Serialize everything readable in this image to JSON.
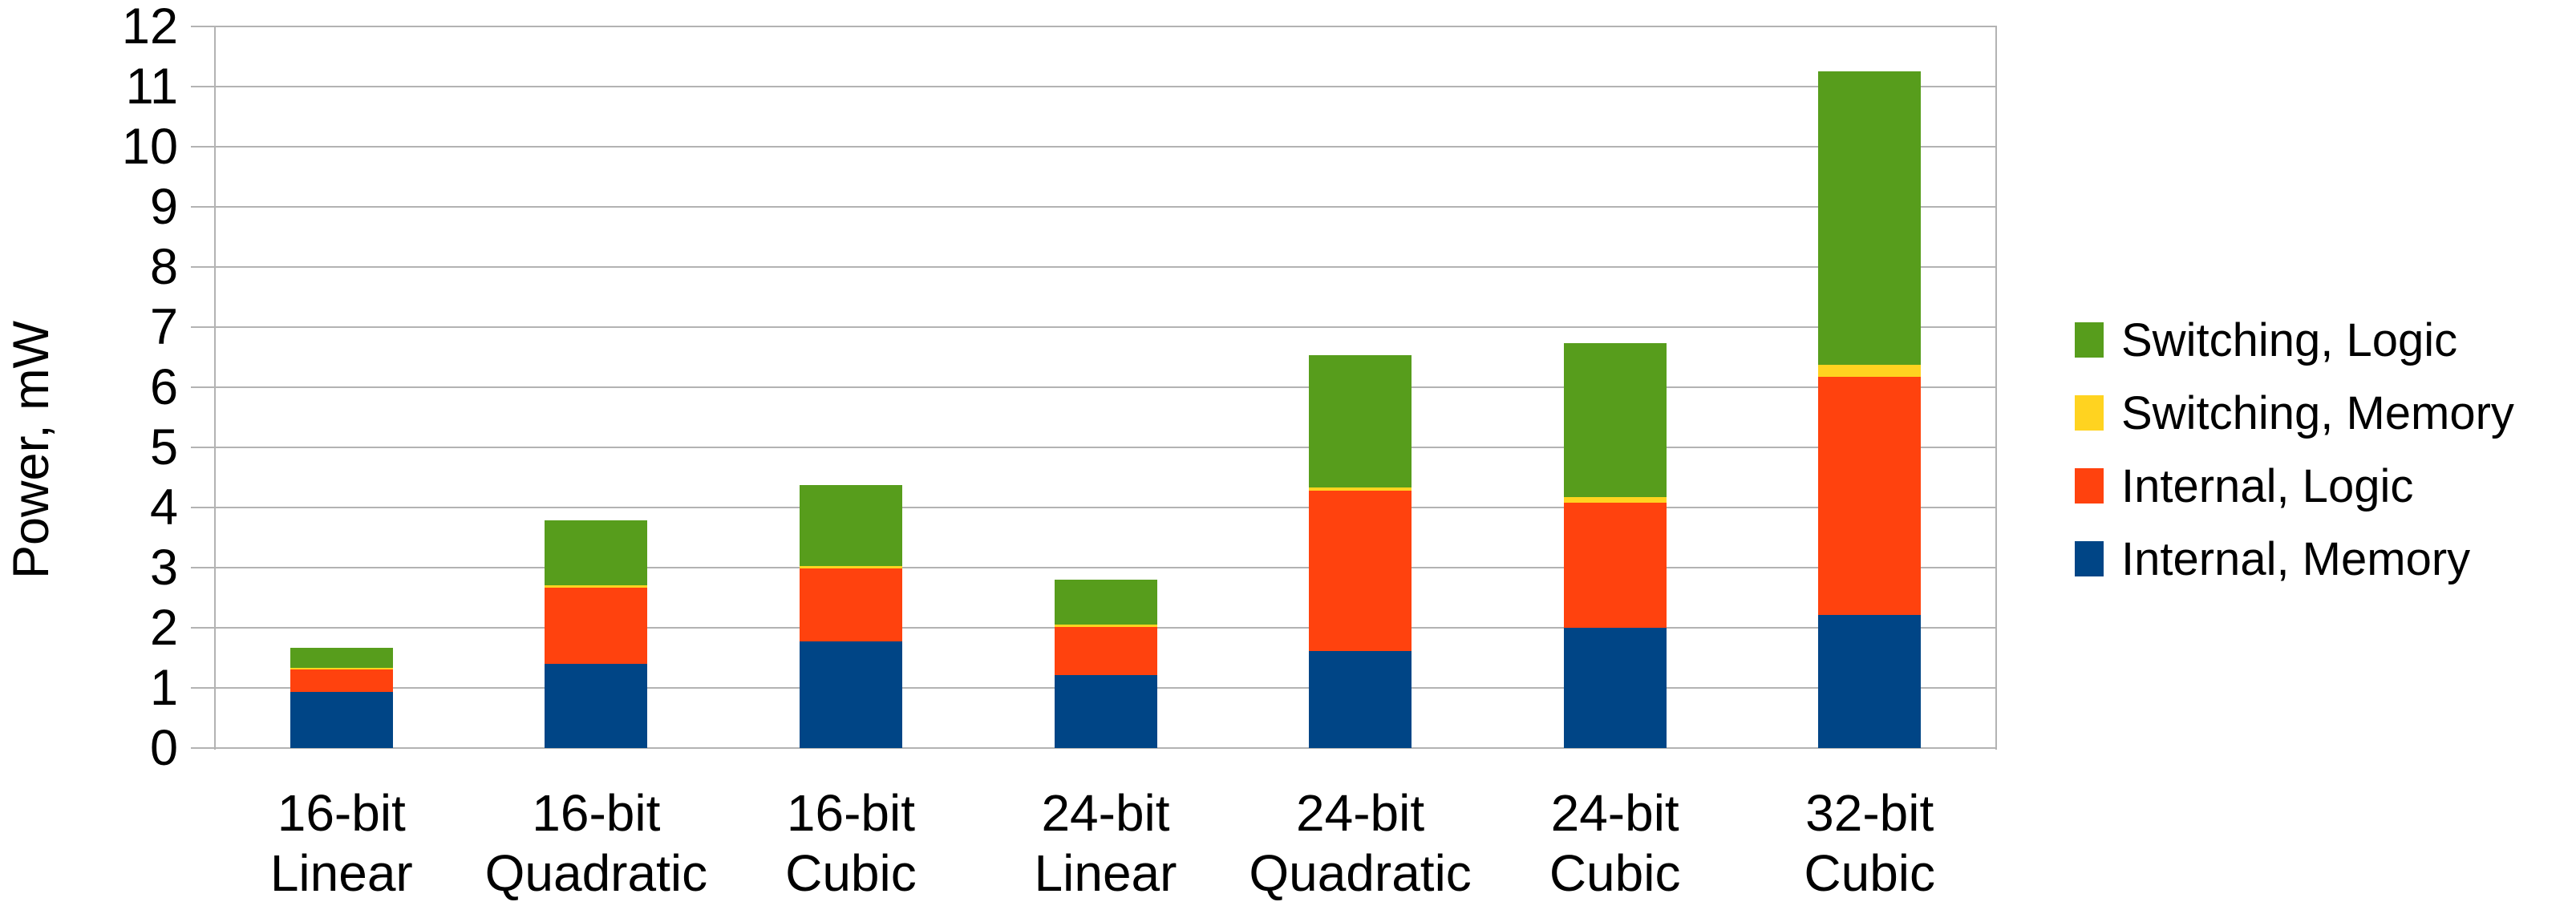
{
  "chart_data": {
    "type": "bar",
    "stacked": true,
    "title": "",
    "xlabel": "",
    "ylabel": "Power, mW",
    "ylim": [
      0,
      12
    ],
    "ytick_step": 1,
    "y_tick_labels": [
      "0",
      "1",
      "2",
      "3",
      "4",
      "5",
      "6",
      "7",
      "8",
      "9",
      "10",
      "11",
      "12"
    ],
    "grid": "horizontal",
    "legend_position": "right",
    "categories": [
      [
        "16-bit",
        "Linear"
      ],
      [
        "16-bit",
        "Quadratic"
      ],
      [
        "16-bit",
        "Cubic"
      ],
      [
        "24-bit",
        "Linear"
      ],
      [
        "24-bit",
        "Quadratic"
      ],
      [
        "24-bit",
        "Cubic"
      ],
      [
        "32-bit",
        "Cubic"
      ]
    ],
    "series": [
      {
        "name": "Internal, Memory",
        "color": "#004586",
        "values": [
          0.93,
          1.4,
          1.78,
          1.21,
          1.62,
          2.0,
          2.22
        ]
      },
      {
        "name": "Internal, Logic",
        "color": "#FF420E",
        "values": [
          0.38,
          1.27,
          1.21,
          0.81,
          2.66,
          2.08,
          3.96
        ]
      },
      {
        "name": "Switching, Memory",
        "color": "#FFD320",
        "values": [
          0.03,
          0.04,
          0.04,
          0.04,
          0.05,
          0.1,
          0.19
        ]
      },
      {
        "name": "Switching, Logic",
        "color": "#579D1C",
        "values": [
          0.33,
          1.08,
          1.35,
          0.74,
          2.2,
          2.56,
          4.88
        ]
      }
    ],
    "stack_totals": [
      1.67,
      3.79,
      4.38,
      2.8,
      6.53,
      6.74,
      11.25
    ],
    "legend_items_top_to_bottom": [
      {
        "label": "Switching, Logic",
        "color": "#579D1C"
      },
      {
        "label": "Switching, Memory",
        "color": "#FFD320"
      },
      {
        "label": "Internal, Logic",
        "color": "#FF420E"
      },
      {
        "label": "Internal, Memory",
        "color": "#004586"
      }
    ],
    "colors": {
      "gridline": "#b3b3b3",
      "axis_line": "#b3b3b3",
      "text": "#000000",
      "background": "#ffffff"
    }
  }
}
